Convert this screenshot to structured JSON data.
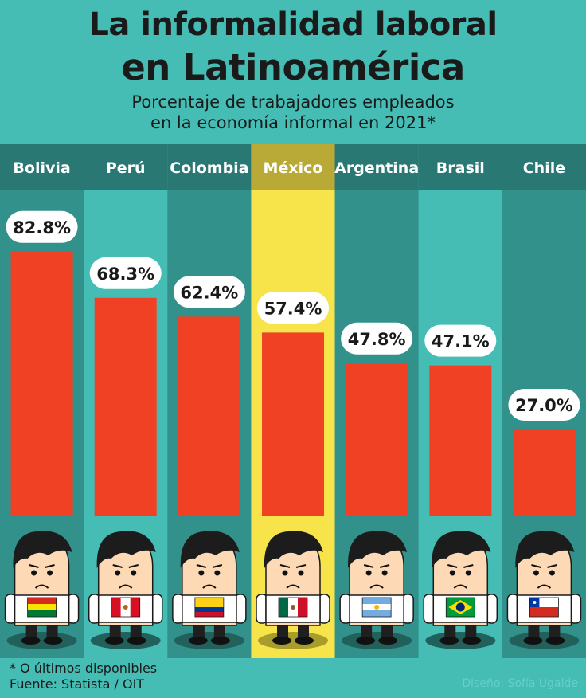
{
  "header": {
    "title_line1": "La informalidad laboral",
    "title_line2": "en Latinoamérica",
    "subtitle_line1": "Porcentaje de trabajadores empleados",
    "subtitle_line2": "en la economía informal en 2021*"
  },
  "footer": {
    "note": "* O últimos disponibles",
    "source": "Fuente: Statista / OIT",
    "credit": "Diseño: Sofía Ugalde"
  },
  "colors": {
    "background": "#45bcb4",
    "column_dark": "#33918c",
    "header_band": "#2a7874",
    "bar": "#f04124",
    "highlight": "#f7e34a",
    "highlight_header": "#b9a937"
  },
  "chart_data": {
    "type": "bar",
    "categories": [
      "Bolivia",
      "Perú",
      "Colombia",
      "México",
      "Argentina",
      "Brasil",
      "Chile"
    ],
    "values": [
      82.8,
      68.3,
      62.4,
      57.4,
      47.8,
      47.1,
      27.0
    ],
    "value_labels": [
      "82.8%",
      "68.3%",
      "62.4%",
      "57.4%",
      "47.8%",
      "47.1%",
      "27.0%"
    ],
    "unit": "%",
    "highlight": "México",
    "flags": [
      "bolivia-flag",
      "peru-flag",
      "colombia-flag",
      "mexico-flag",
      "argentina-flag",
      "brazil-flag",
      "chile-flag"
    ],
    "ylim": [
      0,
      100
    ]
  }
}
